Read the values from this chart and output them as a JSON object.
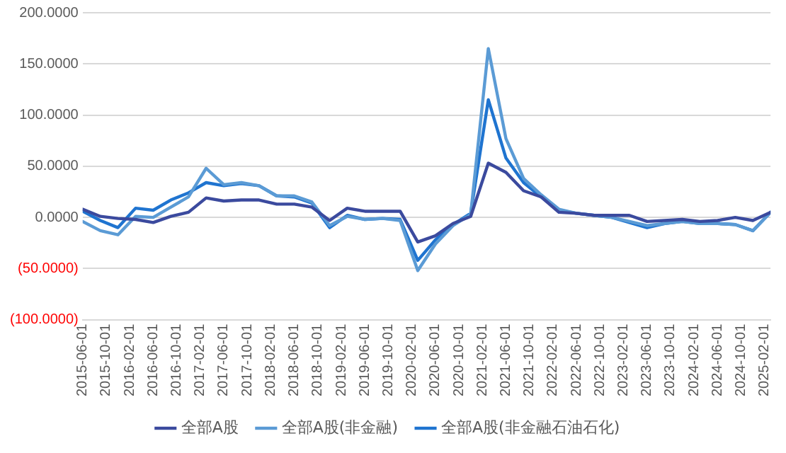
{
  "chart_data": {
    "type": "line",
    "x": [
      "2015-06",
      "2015-09",
      "2015-12",
      "2016-03",
      "2016-06",
      "2016-09",
      "2016-12",
      "2017-03",
      "2017-06",
      "2017-09",
      "2017-12",
      "2018-03",
      "2018-06",
      "2018-09",
      "2018-12",
      "2019-03",
      "2019-06",
      "2019-09",
      "2019-12",
      "2020-03",
      "2020-06",
      "2020-09",
      "2020-12",
      "2021-03",
      "2021-06",
      "2021-09",
      "2021-12",
      "2022-03",
      "2022-06",
      "2022-09",
      "2022-12",
      "2023-03",
      "2023-06",
      "2023-09",
      "2023-12",
      "2024-03",
      "2024-06",
      "2024-09",
      "2024-12",
      "2025-03"
    ],
    "series": [
      {
        "name": "全部A股",
        "color": "#3b4a9e",
        "values": [
          8,
          1,
          -1,
          -2,
          -5,
          1,
          5,
          19,
          16,
          17,
          17,
          13,
          13,
          10,
          -3,
          9,
          6,
          6,
          6,
          -24,
          -18,
          -6,
          1,
          53,
          44,
          26,
          20,
          5,
          4,
          2,
          2,
          2,
          -4,
          -3,
          -2,
          -4,
          -3,
          0,
          -3,
          5
        ]
      },
      {
        "name": "全部A股(非金融)",
        "color": "#5b9bd5",
        "values": [
          -4,
          -13,
          -17,
          1,
          0,
          10,
          20,
          48,
          32,
          34,
          31,
          21,
          21,
          15,
          -8,
          1,
          -2,
          -1,
          -3,
          -52,
          -26,
          -8,
          3,
          165,
          77,
          38,
          22,
          8,
          4,
          2,
          0,
          -4,
          -8,
          -6,
          -4,
          -6,
          -6,
          -7,
          -13,
          5
        ]
      },
      {
        "name": "全部A股(非金融石油石化)",
        "color": "#1f74d0",
        "values": [
          6,
          -3,
          -10,
          9,
          7,
          17,
          24,
          34,
          31,
          33,
          31,
          21,
          20,
          14,
          -10,
          2,
          -2,
          -1,
          -2,
          -42,
          -22,
          -7,
          4,
          115,
          58,
          34,
          20,
          7,
          4,
          2,
          0,
          -5,
          -10,
          -6,
          -4,
          -6,
          -6,
          -7,
          -13,
          5
        ]
      }
    ],
    "xlim": [
      "2015-06-01",
      "2025-03-01"
    ],
    "xticks": [
      "2015-06-01",
      "2015-10-01",
      "2016-02-01",
      "2016-06-01",
      "2016-10-01",
      "2017-02-01",
      "2017-06-01",
      "2017-10-01",
      "2018-02-01",
      "2018-06-01",
      "2018-10-01",
      "2019-02-01",
      "2019-06-01",
      "2019-10-01",
      "2020-02-01",
      "2020-06-01",
      "2020-10-01",
      "2021-02-01",
      "2021-06-01",
      "2021-10-01",
      "2022-02-01",
      "2022-06-01",
      "2022-10-01",
      "2023-02-01",
      "2023-06-01",
      "2023-10-01",
      "2024-02-01",
      "2024-06-01",
      "2024-10-01",
      "2025-02-01"
    ],
    "ylim": [
      -100,
      200
    ],
    "yticks": [
      {
        "value": -100,
        "label": "(100.0000)"
      },
      {
        "value": -50,
        "label": "(50.0000)"
      },
      {
        "value": 0,
        "label": "0.0000"
      },
      {
        "value": 50,
        "label": "50.0000"
      },
      {
        "value": 100,
        "label": "100.0000"
      },
      {
        "value": 150,
        "label": "150.0000"
      },
      {
        "value": 200,
        "label": "200.0000"
      }
    ],
    "grid": "y",
    "legend": "bottom",
    "marker": "none",
    "line_style": "solid"
  }
}
